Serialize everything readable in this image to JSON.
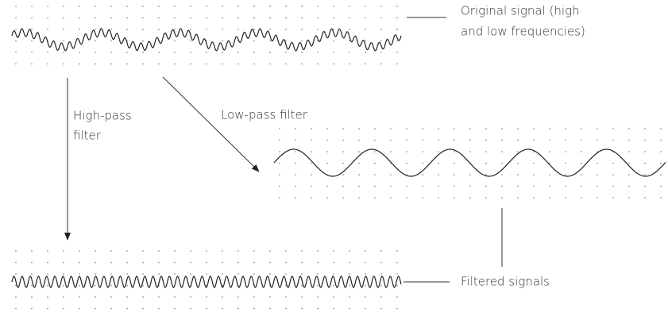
{
  "labels": {
    "original": [
      "Original signal (high",
      "and low frequencies)"
    ],
    "high_pass": [
      "High-pass",
      "filter"
    ],
    "low_pass": "Low-pass filter",
    "filtered": "Filtered signals"
  }
}
